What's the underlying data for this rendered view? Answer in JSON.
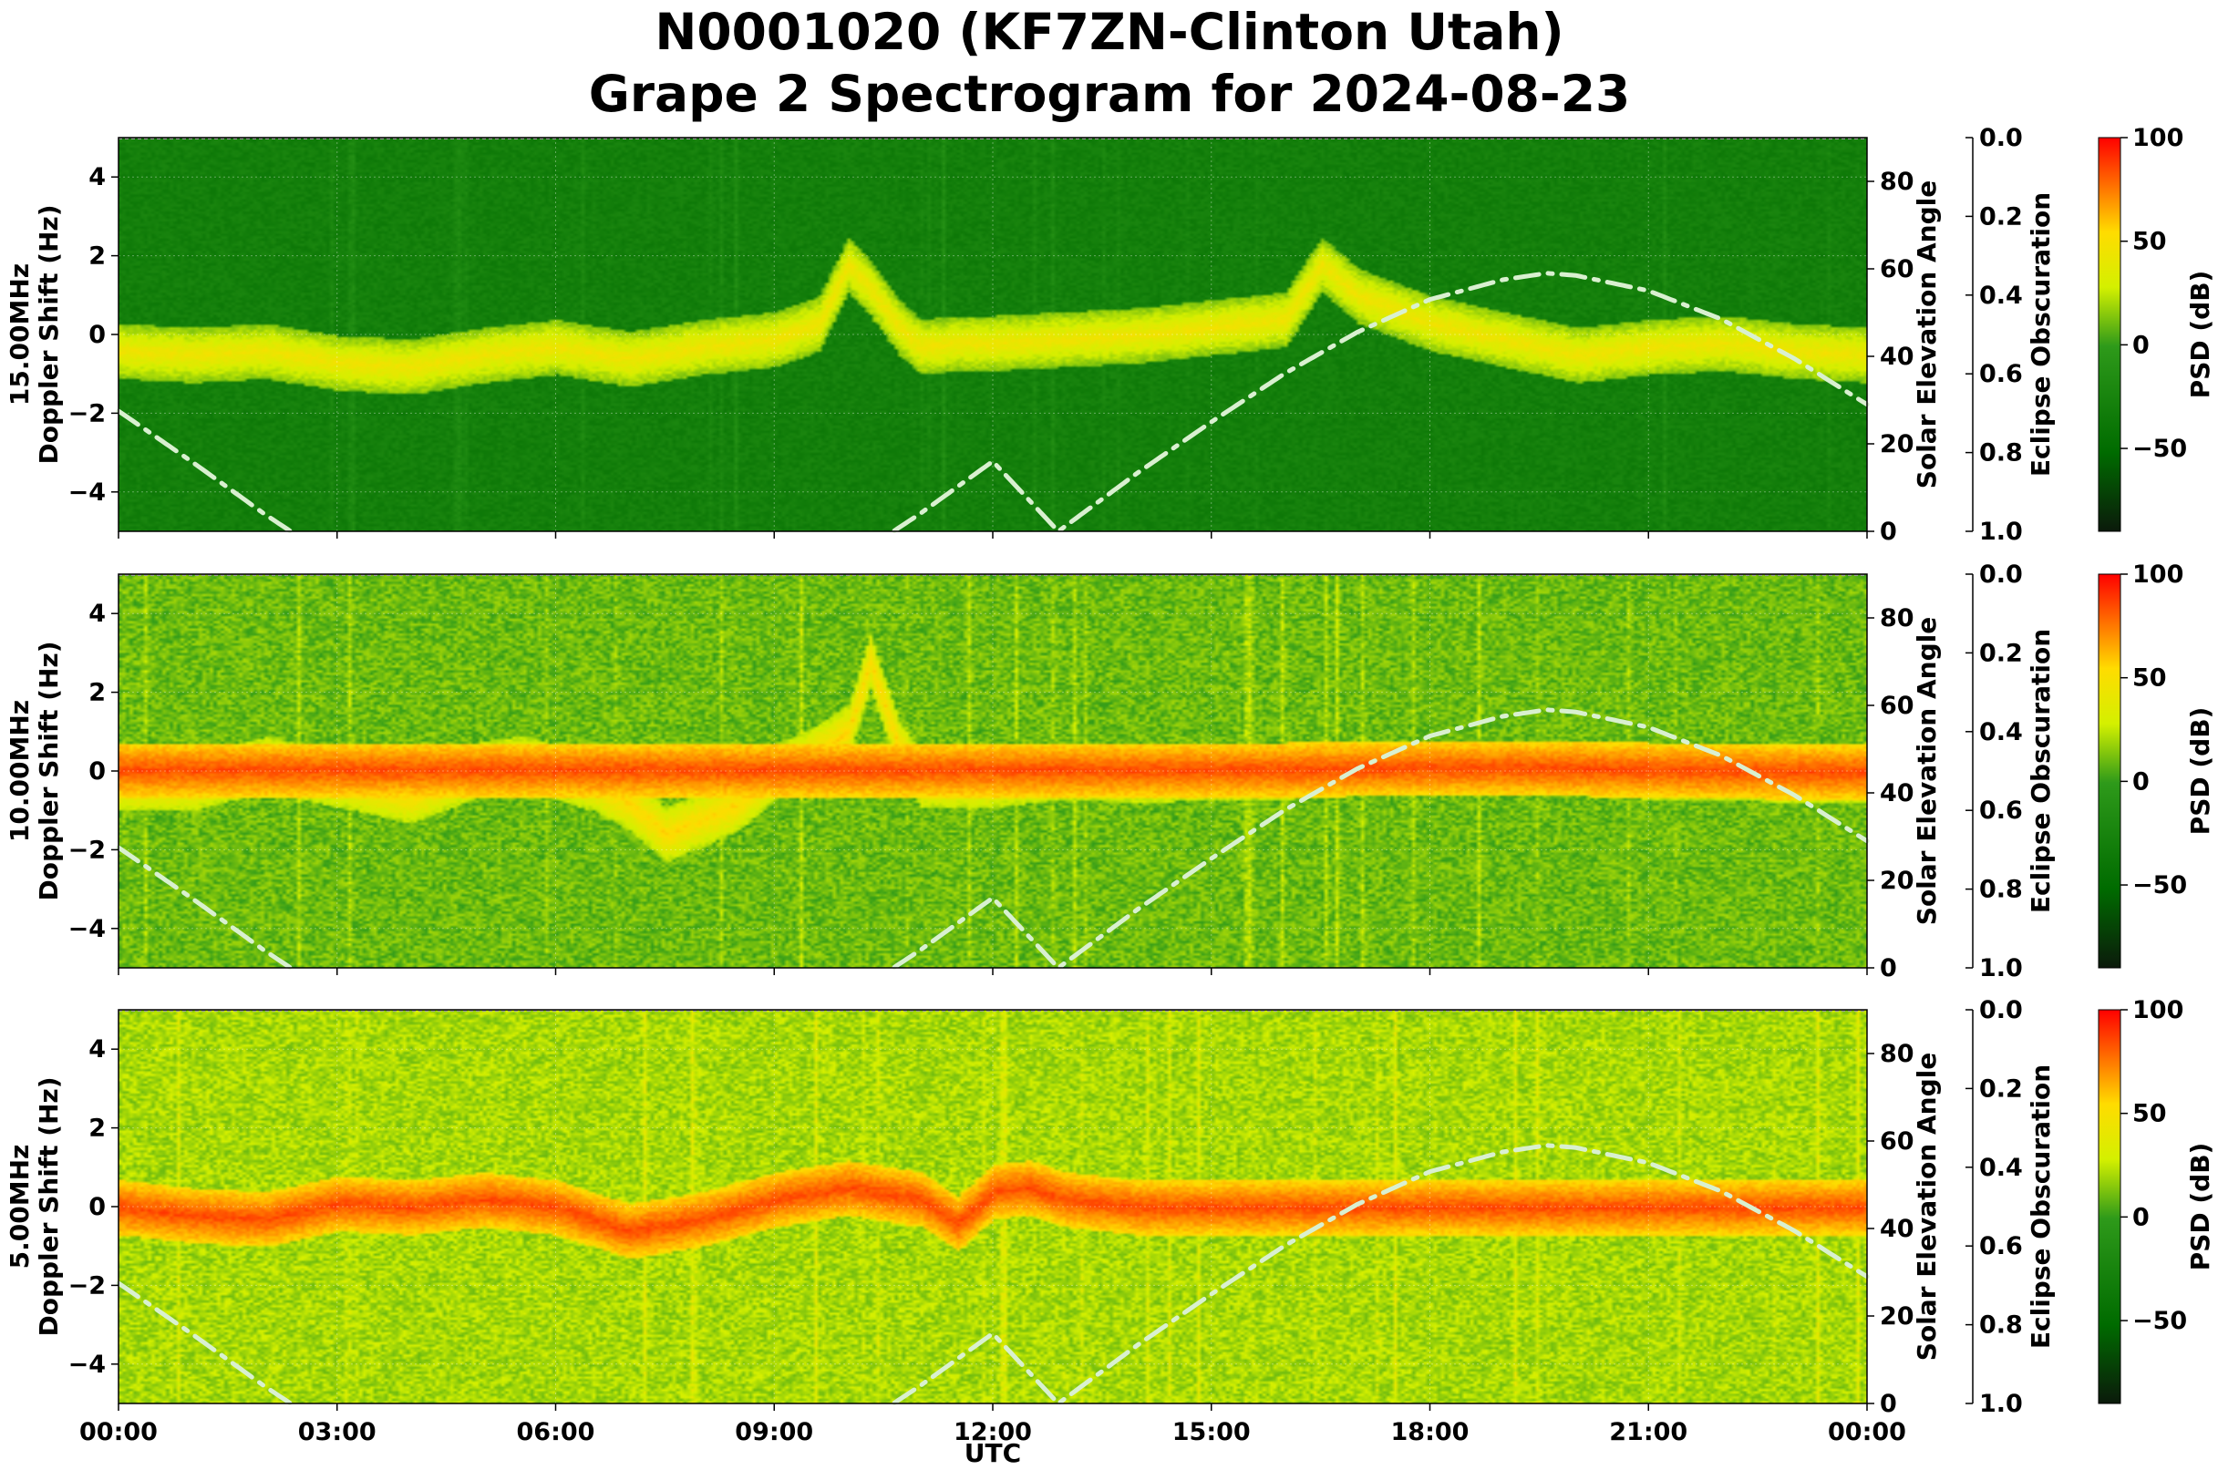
{
  "title": {
    "line1": "N0001020 (KF7ZN-Clinton Utah)",
    "line2": "Grape 2 Spectrogram for 2024-08-23"
  },
  "colors": {
    "colormap": [
      "#0b1a0b",
      "#006b00",
      "#2e9a1a",
      "#d4f000",
      "#ffdc00",
      "#ff0000"
    ],
    "solar_curve": "#d9f0d0"
  },
  "chart_data": [
    {
      "type": "heatmap",
      "frequency_label": "15.00MHz",
      "ylabel": "Doppler Shift (Hz)",
      "xlabel": "",
      "ylim": [
        -5,
        5
      ],
      "yticks": [
        "4",
        "2",
        "0",
        "−2",
        "−4"
      ],
      "secondary_y": {
        "label": "Solar Elevation Angle",
        "ylim": [
          0,
          90
        ],
        "ticks": [
          "80",
          "60",
          "40",
          "20",
          "0"
        ]
      },
      "obscuration_axis": {
        "label": "Eclipse Obscuration",
        "ylim": [
          1.0,
          0.0
        ],
        "ticks": [
          "0.0",
          "0.2",
          "0.4",
          "0.6",
          "0.8",
          "1.0"
        ]
      },
      "colorbar": {
        "label": "PSD (dB)",
        "range": [
          -90,
          100
        ],
        "ticks": [
          "100",
          "50",
          "0",
          "−50"
        ]
      },
      "background_level_db": -30,
      "noise_db": 8,
      "traces": [
        {
          "x": [
            0,
            1,
            2,
            3,
            4,
            5,
            6,
            7,
            8,
            9,
            9.6,
            10,
            10.3,
            10.7,
            11,
            11.5,
            12,
            13,
            14,
            15,
            16,
            16.5,
            17,
            18,
            19,
            20,
            21,
            22,
            23,
            24
          ],
          "y": [
            -0.4,
            -0.5,
            -0.4,
            -0.7,
            -0.8,
            -0.5,
            -0.3,
            -0.6,
            -0.3,
            -0.1,
            0.3,
            1.8,
            1.2,
            0.2,
            -0.3,
            -0.2,
            -0.2,
            -0.1,
            0.0,
            0.2,
            0.4,
            1.8,
            1.0,
            0.3,
            -0.1,
            -0.5,
            -0.3,
            -0.2,
            -0.4,
            -0.5
          ],
          "db": 45
        }
      ]
    },
    {
      "type": "heatmap",
      "frequency_label": "10.00MHz",
      "ylabel": "Doppler Shift (Hz)",
      "xlabel": "",
      "ylim": [
        -5,
        5
      ],
      "yticks": [
        "4",
        "2",
        "0",
        "−2",
        "−4"
      ],
      "secondary_y": {
        "label": "Solar Elevation Angle",
        "ylim": [
          0,
          90
        ],
        "ticks": [
          "80",
          "60",
          "40",
          "20",
          "0"
        ]
      },
      "obscuration_axis": {
        "label": "Eclipse Obscuration",
        "ylim": [
          1.0,
          0.0
        ],
        "ticks": [
          "0.0",
          "0.2",
          "0.4",
          "0.6",
          "0.8",
          "1.0"
        ]
      },
      "colorbar": {
        "label": "PSD (dB)",
        "range": [
          -90,
          100
        ],
        "ticks": [
          "100",
          "50",
          "0",
          "−50"
        ]
      },
      "background_level_db": 10,
      "noise_db": 10,
      "traces": [
        {
          "x": [
            0,
            1,
            2,
            3,
            4,
            5,
            5.5,
            6,
            6.5,
            7,
            7.5,
            8,
            8.5,
            9,
            9.5,
            10,
            10.3,
            10.7,
            11,
            12,
            13,
            14,
            15,
            16,
            17,
            18,
            19,
            20,
            21,
            22,
            23,
            24
          ],
          "y": [
            -0.3,
            -0.3,
            0.2,
            -0.2,
            -0.6,
            0.1,
            0.2,
            0.0,
            -0.3,
            -0.8,
            -1.6,
            -1.2,
            -0.8,
            0.0,
            0.4,
            1.0,
            2.8,
            0.6,
            -0.2,
            -0.2,
            0.0,
            -0.1,
            0.0,
            0.0,
            0.1,
            0.1,
            0.1,
            0.1,
            0.0,
            0.0,
            -0.1,
            -0.1
          ],
          "db": 55
        },
        {
          "x": [
            15,
            16,
            17,
            18,
            19,
            20,
            21,
            22,
            23,
            24
          ],
          "y": [
            0.05,
            0.05,
            0.08,
            0.1,
            0.1,
            0.08,
            0.05,
            0.03,
            0.0,
            0.0
          ],
          "db": 85
        }
      ]
    },
    {
      "type": "heatmap",
      "frequency_label": "5.00MHz",
      "ylabel": "Doppler Shift (Hz)",
      "xlabel": "UTC",
      "ylim": [
        -5,
        5
      ],
      "yticks": [
        "4",
        "2",
        "0",
        "−2",
        "−4"
      ],
      "xticks": [
        "00:00",
        "03:00",
        "06:00",
        "09:00",
        "12:00",
        "15:00",
        "18:00",
        "21:00",
        "00:00"
      ],
      "secondary_y": {
        "label": "Solar Elevation Angle",
        "ylim": [
          0,
          90
        ],
        "ticks": [
          "80",
          "60",
          "40",
          "20",
          "0"
        ]
      },
      "obscuration_axis": {
        "label": "Eclipse Obscuration",
        "ylim": [
          1.0,
          0.0
        ],
        "ticks": [
          "0.0",
          "0.2",
          "0.4",
          "0.6",
          "0.8",
          "1.0"
        ]
      },
      "colorbar": {
        "label": "PSD (dB)",
        "range": [
          -90,
          100
        ],
        "ticks": [
          "100",
          "50",
          "0",
          "−50"
        ]
      },
      "background_level_db": 20,
      "noise_db": 10,
      "traces": [
        {
          "x": [
            0,
            1,
            2,
            3,
            4,
            5,
            6,
            6.5,
            7,
            8,
            9,
            10,
            11,
            11.5,
            12,
            12.5,
            13,
            14,
            15,
            16,
            17,
            18,
            19,
            20,
            21,
            22,
            23,
            24
          ],
          "y": [
            0.0,
            -0.2,
            -0.3,
            0.1,
            0.0,
            0.2,
            0.0,
            -0.3,
            -0.6,
            -0.3,
            0.2,
            0.5,
            0.2,
            -0.4,
            0.4,
            0.5,
            0.2,
            0.0,
            0.0,
            0.0,
            0.0,
            0.0,
            0.0,
            0.0,
            0.0,
            0.0,
            0.0,
            0.0
          ],
          "db": 85
        }
      ]
    }
  ],
  "solar_elevation": {
    "x_hours": [
      0,
      1,
      2,
      3,
      4,
      5,
      6,
      7,
      8,
      9,
      10,
      11,
      12,
      12.9,
      14,
      15,
      16,
      17,
      18,
      19,
      19.6,
      20,
      21,
      22,
      23,
      24
    ],
    "degrees": [
      27.5,
      16,
      4,
      -7,
      -16,
      -23,
      -27,
      -27,
      -23,
      -16,
      -7,
      4,
      16,
      0,
      13.5,
      25,
      36,
      45.5,
      53,
      57.5,
      59,
      58.5,
      55,
      48.5,
      39.5,
      29
    ]
  }
}
